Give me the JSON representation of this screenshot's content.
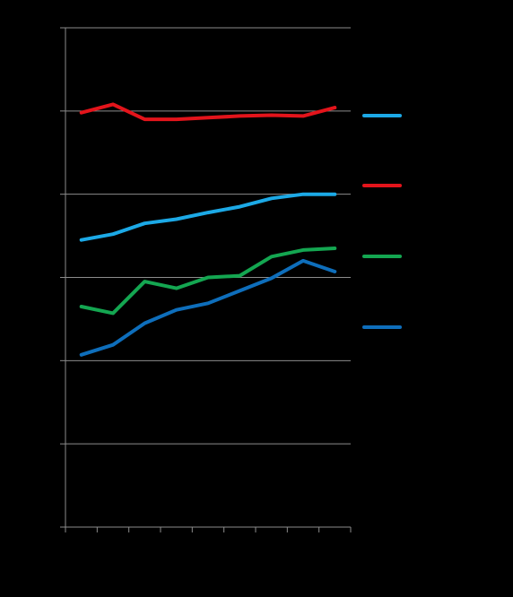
{
  "chart_data": {
    "type": "line",
    "title": "",
    "xlabel": "",
    "ylabel": "",
    "x": [
      1,
      2,
      3,
      4,
      5,
      6,
      7,
      8,
      9
    ],
    "xlim": [
      0.5,
      9.5
    ],
    "ylim": [
      0,
      6
    ],
    "y_gridlines": [
      1,
      2,
      3,
      4,
      5,
      6
    ],
    "grid": true,
    "legend_position": "right",
    "background_color": "#000000",
    "series": [
      {
        "color": "#1CA9E6",
        "values": [
          3.45,
          3.52,
          3.65,
          3.7,
          3.78,
          3.85,
          3.95,
          4.0,
          4.0
        ]
      },
      {
        "color": "#E3141B",
        "values": [
          4.98,
          5.08,
          4.9,
          4.9,
          4.92,
          4.94,
          4.95,
          4.94,
          5.04
        ]
      },
      {
        "color": "#14A651",
        "values": [
          2.65,
          2.57,
          2.95,
          2.87,
          3.0,
          3.02,
          3.25,
          3.33,
          3.35
        ]
      },
      {
        "color": "#0E6EBB",
        "values": [
          2.07,
          2.19,
          2.45,
          2.61,
          2.69,
          2.84,
          2.99,
          3.2,
          3.07
        ]
      }
    ]
  }
}
